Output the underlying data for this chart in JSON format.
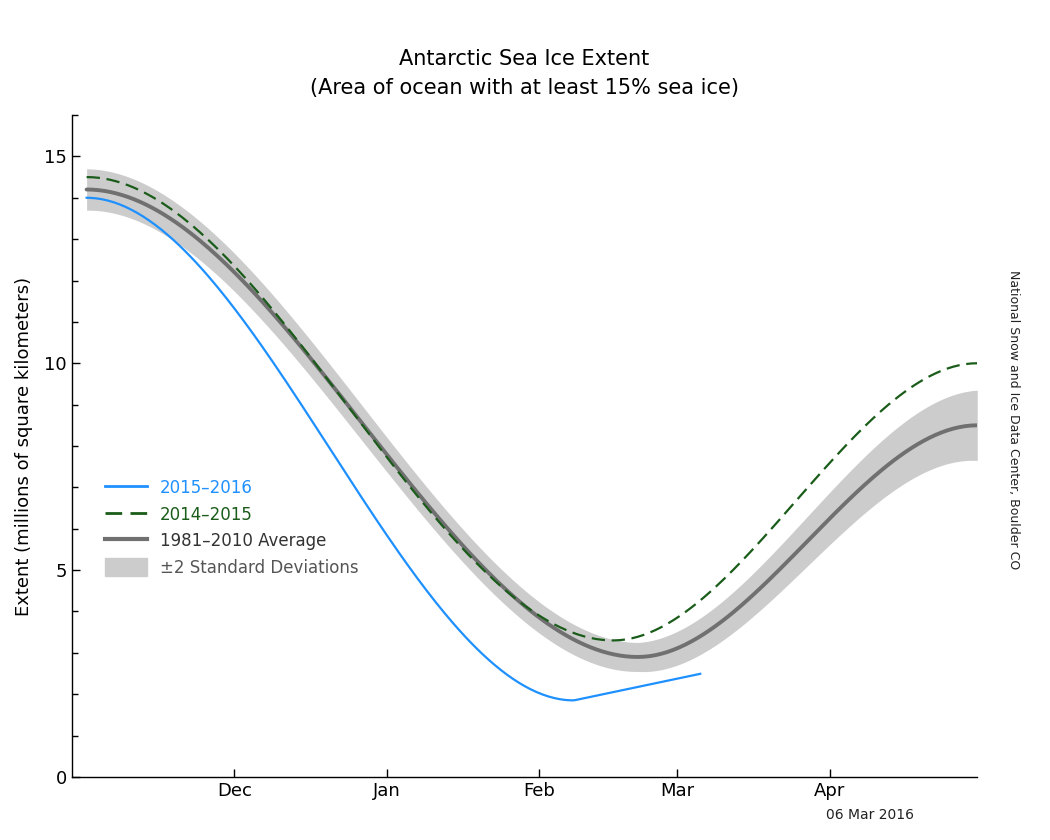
{
  "title_line1": "Antarctic Sea Ice Extent",
  "title_line2": "(Area of ocean with at least 15% sea ice)",
  "ylabel": "Extent (millions of square kilometers)",
  "watermark": "National Snow and Ice Data Center, Boulder CO",
  "date_label": "06 Mar 2016",
  "ylim": [
    0,
    16
  ],
  "yticks": [
    0,
    5,
    10,
    15
  ],
  "avg_color": "#707070",
  "shade_color": "#cccccc",
  "line_2016_color": "#1E90FF",
  "line_2015_color": "#1a5c1a",
  "avg_linewidth": 2.8,
  "line_2016_linewidth": 1.6,
  "line_2015_linewidth": 1.6,
  "legend_label_2016": "2015–2016",
  "legend_label_2015": "2014–2015",
  "legend_label_avg": "1981–2010 Average",
  "legend_label_std": "±2 Standard Deviations"
}
